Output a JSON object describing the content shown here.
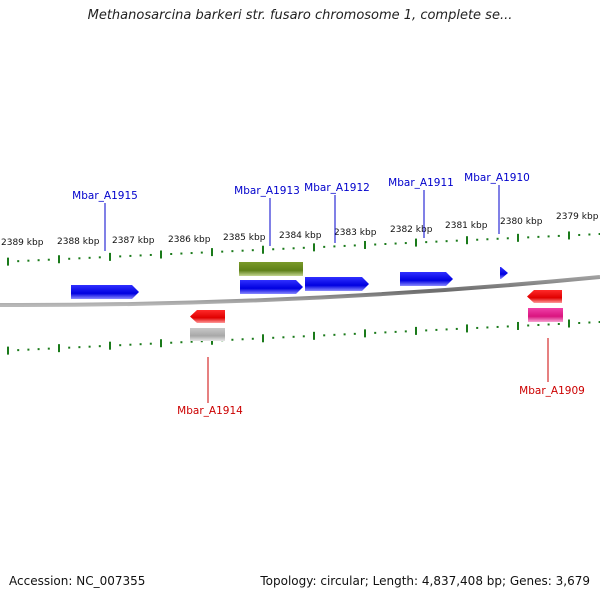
{
  "title": "Methanosarcina barkeri str. fusaro chromosome 1, complete se...",
  "footer": {
    "accession": "Accession: NC_007355",
    "summary": "Topology: circular; Length: 4,837,408 bp; Genes: 3,679"
  },
  "colors": {
    "backbone": "#7f7f7f",
    "tick": "#1a7a1a",
    "forward_gene": "#0000ee",
    "reverse_gene": "#ee0000",
    "forward_label": "#0000cc",
    "reverse_label": "#cc0000",
    "olive_feature": "#6b8e23",
    "gray_feature": "#b0b0b0",
    "pink_feature": "#e8198f"
  },
  "scale": {
    "unit": "kbp",
    "labels": [
      "2389 kbp",
      "2388 kbp",
      "2387 kbp",
      "2386 kbp",
      "2385 kbp",
      "2384 kbp",
      "2383 kbp",
      "2382 kbp",
      "2381 kbp",
      "2380 kbp",
      "2379 kbp"
    ]
  },
  "genes": [
    {
      "name": "Mbar_A1915",
      "strand": "forward"
    },
    {
      "name": "Mbar_A1913",
      "strand": "forward"
    },
    {
      "name": "Mbar_A1912",
      "strand": "forward"
    },
    {
      "name": "Mbar_A1911",
      "strand": "forward"
    },
    {
      "name": "Mbar_A1910",
      "strand": "forward"
    },
    {
      "name": "Mbar_A1914",
      "strand": "reverse"
    },
    {
      "name": "Mbar_A1909",
      "strand": "reverse"
    }
  ]
}
